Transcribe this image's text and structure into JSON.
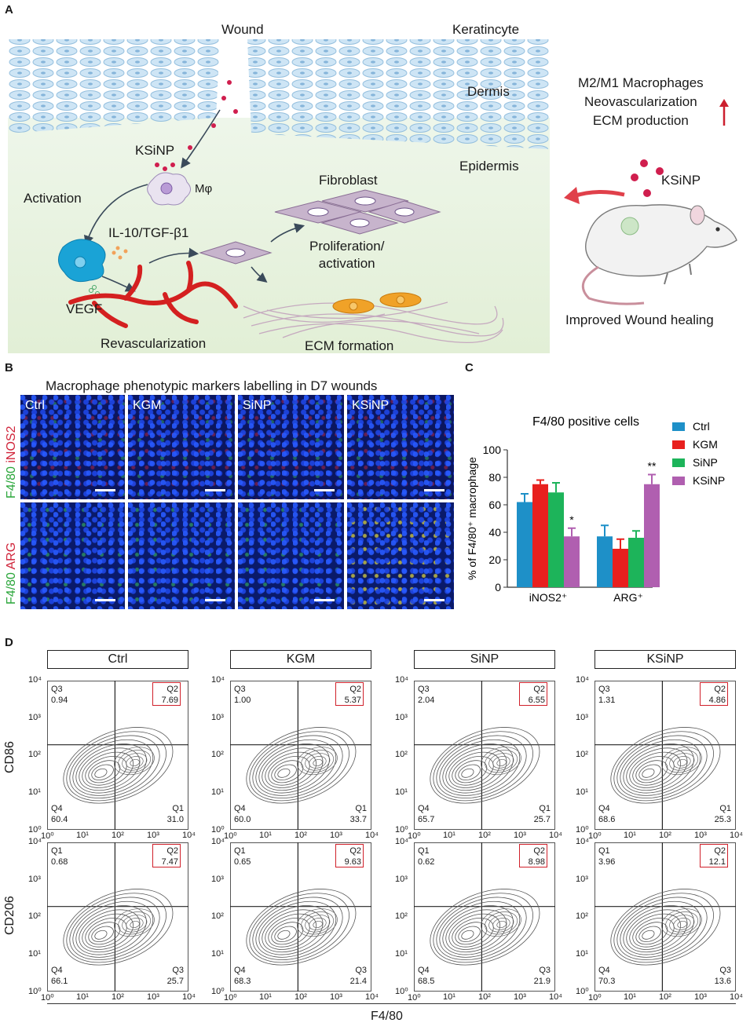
{
  "panel_a": {
    "letter": "A",
    "labels": {
      "wound": "Wound",
      "keratinocyte": "Keratincyte",
      "dermis": "Dermis",
      "epidermis": "Epidermis",
      "ksinp": "KSiNP",
      "mphi": "Mφ",
      "activation": "Activation",
      "fibroblast": "Fibroblast",
      "il10": "IL-10/TGF-β1",
      "proliferation": "Proliferation/\nactivation",
      "vegf": "VEGF",
      "revascularization": "Revascularization",
      "ecm_formation": "ECM formation",
      "effects": [
        "M2/M1 Macrophages",
        "Neovascularization",
        "ECM production"
      ],
      "ksinp_right": "KSiNP",
      "improved": "Improved Wound healing"
    },
    "colors": {
      "red_arrow": "#cc1f2e",
      "macrophage": "#1aa3d6",
      "vessel": "#d42020",
      "fibroblast": "#c7b4cc",
      "skin": "#a9d2ea"
    }
  },
  "panel_b": {
    "letter": "B",
    "title": "Macrophage phenotypic markers labelling in D7 wounds",
    "groups": [
      "Ctrl",
      "KGM",
      "SiNP",
      "KSiNP"
    ],
    "row1_label_green": "F4/80",
    "row1_label_red": "iNOS2",
    "row2_label_green": "F4/80",
    "row2_label_red": "ARG"
  },
  "panel_c": {
    "letter": "C",
    "chart_data": {
      "type": "bar",
      "title": "F4/80 positive cells",
      "ylabel": "% of F4/80⁺ macrophage",
      "ylim": [
        0,
        100
      ],
      "yticks": [
        0,
        20,
        40,
        60,
        80,
        100
      ],
      "categories": [
        "iNOS2⁺",
        "ARG⁺"
      ],
      "series": [
        {
          "name": "Ctrl",
          "color": "#1e90c8",
          "values": [
            62,
            37
          ],
          "errors": [
            6,
            8
          ]
        },
        {
          "name": "KGM",
          "color": "#e8201e",
          "values": [
            75,
            28
          ],
          "errors": [
            3,
            7
          ]
        },
        {
          "name": "SiNP",
          "color": "#1db45a",
          "values": [
            69,
            36
          ],
          "errors": [
            7,
            5
          ]
        },
        {
          "name": "KSiNP",
          "color": "#b05fb0",
          "values": [
            37,
            75
          ],
          "errors": [
            6,
            7
          ]
        }
      ],
      "annotations": [
        {
          "category": "iNOS2⁺",
          "series": "KSiNP",
          "text": "*"
        },
        {
          "category": "ARG⁺",
          "series": "KSiNP",
          "text": "**"
        }
      ],
      "legend": "right"
    }
  },
  "panel_d": {
    "letter": "D",
    "groups": [
      "Ctrl",
      "KGM",
      "SiNP",
      "KSiNP"
    ],
    "xlabel": "F4/80",
    "row1_ylabel": "CD86",
    "row2_ylabel": "CD206",
    "row1": [
      {
        "tl": "Q3",
        "tl_v": "0.94",
        "tr": "Q2",
        "tr_v": "7.69",
        "bl": "Q4",
        "bl_v": "60.4",
        "br": "Q1",
        "br_v": "31.0"
      },
      {
        "tl": "Q3",
        "tl_v": "1.00",
        "tr": "Q2",
        "tr_v": "5.37",
        "bl": "Q4",
        "bl_v": "60.0",
        "br": "Q1",
        "br_v": "33.7"
      },
      {
        "tl": "Q3",
        "tl_v": "2.04",
        "tr": "Q2",
        "tr_v": "6.55",
        "bl": "Q4",
        "bl_v": "65.7",
        "br": "Q1",
        "br_v": "25.7"
      },
      {
        "tl": "Q3",
        "tl_v": "1.31",
        "tr": "Q2",
        "tr_v": "4.86",
        "bl": "Q4",
        "bl_v": "68.6",
        "br": "Q1",
        "br_v": "25.3"
      }
    ],
    "row2": [
      {
        "tl": "Q1",
        "tl_v": "0.68",
        "tr": "Q2",
        "tr_v": "7.47",
        "bl": "Q4",
        "bl_v": "66.1",
        "br": "Q3",
        "br_v": "25.7"
      },
      {
        "tl": "Q1",
        "tl_v": "0.65",
        "tr": "Q2",
        "tr_v": "9.63",
        "bl": "Q4",
        "bl_v": "68.3",
        "br": "Q3",
        "br_v": "21.4"
      },
      {
        "tl": "Q1",
        "tl_v": "0.62",
        "tr": "Q2",
        "tr_v": "8.98",
        "bl": "Q4",
        "bl_v": "68.5",
        "br": "Q3",
        "br_v": "21.9"
      },
      {
        "tl": "Q1",
        "tl_v": "3.96",
        "tr": "Q2",
        "tr_v": "12.1",
        "bl": "Q4",
        "bl_v": "70.3",
        "br": "Q3",
        "br_v": "13.6"
      }
    ],
    "axis_ticks": [
      "10⁰",
      "10¹",
      "10²",
      "10³",
      "10⁴"
    ]
  }
}
